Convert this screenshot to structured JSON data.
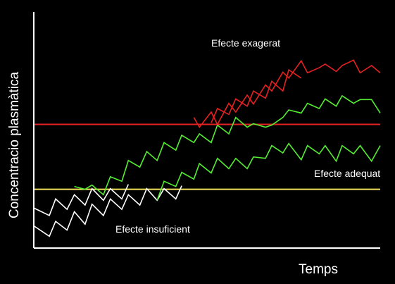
{
  "chart_data": {
    "type": "line",
    "title": "",
    "xlabel": "Temps",
    "ylabel": "Concentracio plasmàtica",
    "xlim": [
      0,
      100
    ],
    "ylim": [
      0,
      100
    ],
    "grid": false,
    "thresholds": [
      {
        "value": 52.4,
        "color": "#e52222"
      },
      {
        "value": 24.9,
        "color": "#f2e05a"
      }
    ],
    "annotations": {
      "top": "Efecte exagerat",
      "middle": "Efecte adequat",
      "bottom": "Efecte insuficient"
    },
    "series": [
      {
        "color": "#ffffff",
        "x": [
          0,
          4.5,
          6.3,
          9.6,
          11.7,
          14.8,
          16.8,
          20.1,
          22.1,
          25.4,
          27.3,
          30.6,
          32.6,
          35.6,
          37.6,
          41.0,
          42.7
        ],
        "y": [
          9.4,
          5.0,
          11.3,
          7.6,
          15.4,
          10.1,
          18.6,
          13.8,
          20.8,
          16.4,
          22.6,
          18.2,
          25.2,
          20.2,
          25.2,
          20.8,
          26.4
        ]
      },
      {
        "color": "#ffffff",
        "x": [
          0,
          4.5,
          6.3,
          9.6,
          11.7,
          14.8,
          16.8,
          20.1,
          22.1,
          25.4,
          27.3
        ],
        "y": [
          17.0,
          13.8,
          20.8,
          16.4,
          22.6,
          18.2,
          25.2,
          20.2,
          25.2,
          20.8,
          27.0
        ]
      },
      {
        "color": "#55ee33",
        "x": [
          11.7,
          14.8,
          16.8,
          20.1,
          22.1,
          25.4,
          27.3,
          30.6,
          32.6,
          35.6,
          37.6,
          41.0,
          42.7,
          46.2,
          47.8,
          51.2,
          53.0,
          56.3,
          58.3,
          61.6,
          63.4,
          66.9,
          68.7,
          71.9,
          73.6,
          77.2,
          79.0,
          82.4,
          84.1,
          87.3,
          89.0,
          92.3,
          94.2,
          97.5,
          100
        ],
        "y": [
          26.1,
          24.9,
          26.7,
          22.6,
          30.2,
          28.3,
          37.1,
          34.3,
          40.9,
          37.1,
          44.7,
          41.5,
          47.8,
          44.7,
          48.4,
          44.7,
          52.1,
          48.4,
          55.3,
          51.2,
          52.7,
          51.2,
          52.1,
          55.3,
          58.5,
          57.2,
          61.3,
          59.1,
          63.2,
          60.1,
          64.5,
          61.3,
          62.9,
          62.9,
          57.2
        ]
      },
      {
        "color": "#55ee33",
        "x": [
          35.6,
          37.6,
          41.0,
          42.7,
          46.2,
          47.8,
          51.2,
          53.0,
          56.3,
          58.3,
          61.6,
          63.4,
          66.9,
          68.7,
          71.9,
          73.6,
          77.2,
          79.0,
          82.4,
          84.1,
          87.3,
          89.0,
          92.3,
          94.2,
          97.5,
          100
        ],
        "y": [
          20.2,
          28.3,
          26.1,
          32.1,
          29.2,
          35.8,
          31.8,
          38.0,
          33.6,
          38.0,
          33.6,
          38.6,
          38.0,
          43.4,
          40.3,
          44.3,
          37.4,
          43.4,
          39.9,
          43.4,
          36.8,
          43.4,
          39.9,
          43.4,
          36.8,
          43.4
        ]
      },
      {
        "color": "#e52222",
        "x": [
          46.2,
          47.8,
          51.2,
          53.0,
          56.3,
          58.3,
          61.6,
          63.4,
          66.9,
          68.7,
          71.9,
          73.6,
          77.2,
          79.0,
          82.4,
          84.1,
          87.3,
          89.0,
          92.3,
          94.2,
          97.5,
          100
        ],
        "y": [
          55.3,
          51.2,
          57.6,
          52.4,
          61.3,
          57.6,
          64.8,
          61.0,
          69.1,
          66.5,
          74.5,
          72.0,
          79.3,
          74.2,
          76.4,
          77.9,
          74.8,
          77.3,
          79.6,
          74.2,
          77.3,
          74.2
        ]
      },
      {
        "color": "#e52222",
        "x": [
          51.2,
          53.0,
          56.3,
          58.3,
          61.6,
          63.4,
          66.9,
          68.7,
          71.9,
          73.6,
          77.2
        ],
        "y": [
          53.0,
          59.1,
          56.6,
          63.2,
          60.1,
          66.5,
          63.5,
          70.7,
          66.5,
          75.5,
          72.0
        ]
      }
    ]
  }
}
